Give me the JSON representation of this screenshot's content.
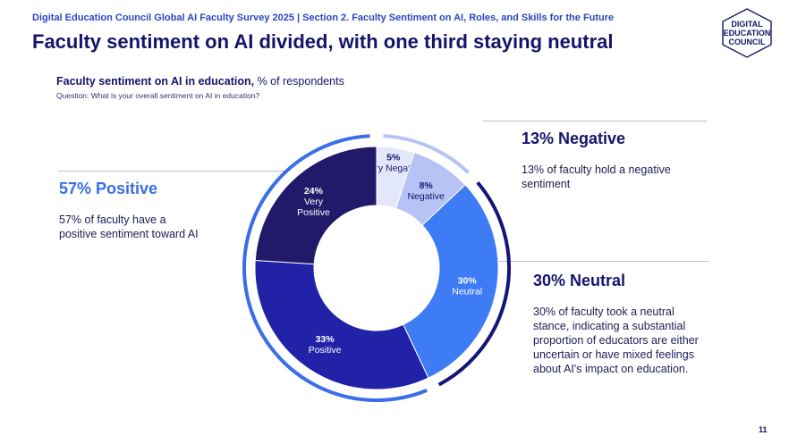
{
  "header": {
    "supertitle": "Digital Education Council Global AI Faculty Survey 2025 | Section 2. Faculty Sentiment on AI, Roles, and Skills for the Future",
    "title": "Faculty sentiment on AI divided, with one third staying neutral",
    "logo_lines": [
      "DIGITAL",
      "EDUCATION",
      "COUNCIL"
    ]
  },
  "chart_heading": {
    "bold": "Faculty sentiment on AI in education,",
    "rest": " % of respondents",
    "question": "Question: What is your overall sentiment on AI in education?"
  },
  "callouts": {
    "negative": {
      "headline": "13% Negative",
      "text_lines": [
        "13% of faculty hold a negative",
        "sentiment"
      ]
    },
    "neutral": {
      "headline": "30% Neutral",
      "text_lines": [
        "30% of faculty took a neutral",
        "stance, indicating a substantial",
        "proportion of educators are either",
        "uncertain or have mixed feelings",
        "about AI's impact on education."
      ]
    },
    "positive": {
      "headline": "57% Positive",
      "text_lines": [
        "57% of faculty have a",
        "positive sentiment toward AI"
      ]
    }
  },
  "colors": {
    "very_negative": "#e3e7fb",
    "negative": "#b8c3f5",
    "neutral": "#3d7cf5",
    "positive": "#2222a8",
    "very_positive": "#23196b",
    "positive_headline": "#3a6de8",
    "negative_headline": "#14146a",
    "neutral_headline": "#14146a",
    "supertitle": "#2c46c4"
  },
  "chart_data": {
    "type": "pie",
    "variant": "donut",
    "order": "clockwise from top",
    "categories": [
      "Very Negative",
      "Negative",
      "Neutral",
      "Positive",
      "Very Positive"
    ],
    "values": [
      5,
      8,
      30,
      33,
      24
    ],
    "value_labels": [
      "5%",
      "8%",
      "30%",
      "33%",
      "24%"
    ],
    "label_lines": [
      [
        "Very Negative"
      ],
      [
        "Negative"
      ],
      [
        "Neutral"
      ],
      [
        "Positive"
      ],
      [
        "Very",
        "Positive"
      ]
    ],
    "groups": [
      {
        "name": "Negative",
        "value": 13,
        "categories": [
          "Very Negative",
          "Negative"
        ]
      },
      {
        "name": "Neutral",
        "value": 30,
        "categories": [
          "Neutral"
        ]
      },
      {
        "name": "Positive",
        "value": 57,
        "categories": [
          "Positive",
          "Very Positive"
        ]
      }
    ]
  },
  "page_number": "11"
}
